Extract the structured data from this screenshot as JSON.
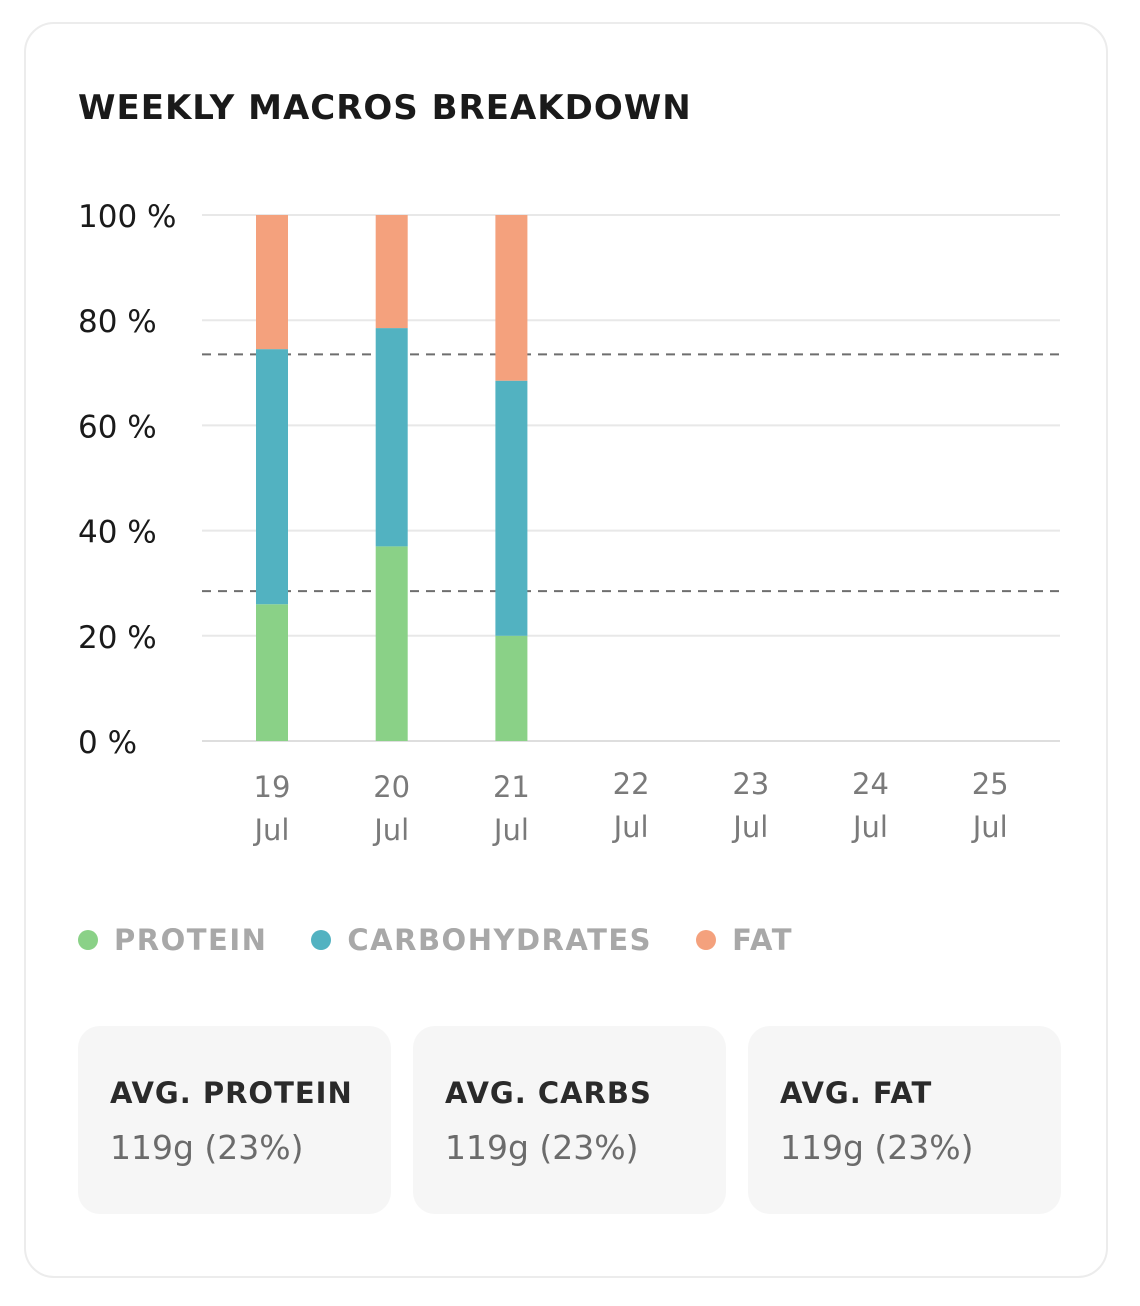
{
  "card": {
    "title": "WEEKLY MACROS BREAKDOWN"
  },
  "chart_data": {
    "type": "bar",
    "stacked": true,
    "categories": [
      [
        "19",
        "Jul"
      ],
      [
        "20",
        "Jul"
      ],
      [
        "21",
        "Jul"
      ],
      [
        "22",
        "Jul"
      ],
      [
        "23",
        "Jul"
      ],
      [
        "24",
        "Jul"
      ],
      [
        "25",
        "Jul"
      ]
    ],
    "series": [
      {
        "name": "PROTEIN",
        "color": "#8ad187",
        "values": [
          26,
          37,
          20,
          null,
          null,
          null,
          null
        ]
      },
      {
        "name": "CARBOHYDRATES",
        "color": "#52b2c1",
        "values": [
          48.5,
          41.5,
          48.5,
          null,
          null,
          null,
          null
        ]
      },
      {
        "name": "FAT",
        "color": "#f4a17d",
        "values": [
          25.5,
          21.5,
          31.5,
          null,
          null,
          null,
          null
        ]
      }
    ],
    "ylim": [
      0,
      100
    ],
    "yticks": [
      0,
      20,
      40,
      60,
      80,
      100
    ],
    "ytick_labels": [
      "0 %",
      "20 %",
      "40 %",
      "60 %",
      "80 %",
      "100 %"
    ],
    "grid": true,
    "reference_lines": [
      28.5,
      73.5
    ],
    "legend_position": "bottom-left"
  },
  "stats": [
    {
      "label": "AVG. PROTEIN",
      "value": "119g (23%)"
    },
    {
      "label": "AVG. CARBS",
      "value": "119g (23%)"
    },
    {
      "label": "AVG. FAT",
      "value": "119g (23%)"
    }
  ]
}
